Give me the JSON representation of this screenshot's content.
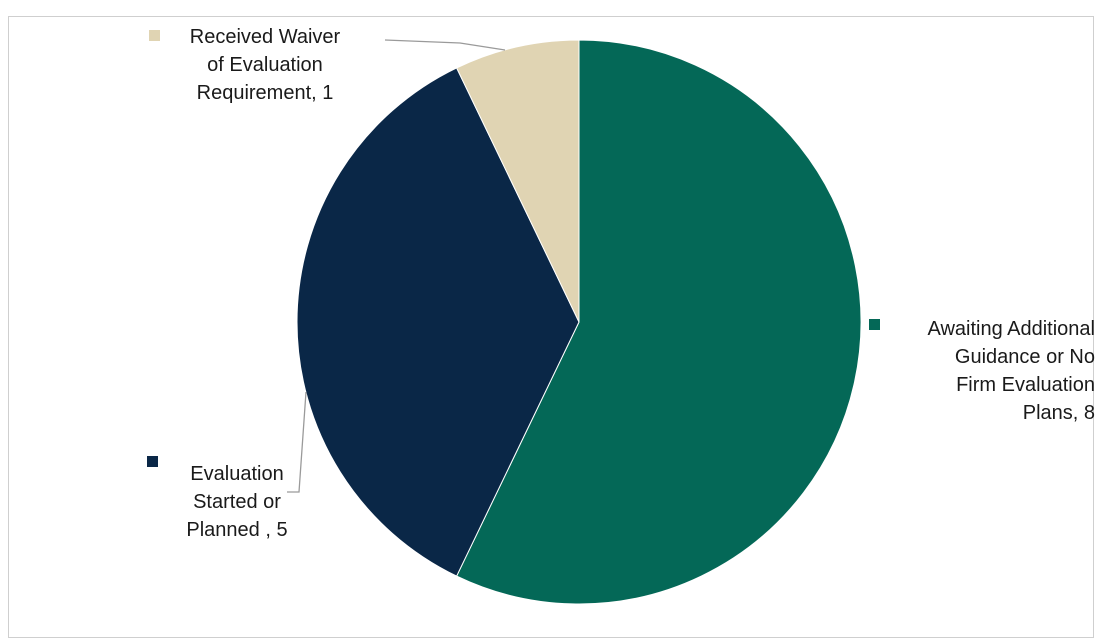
{
  "chart_data": {
    "type": "pie",
    "title": "",
    "slices": [
      {
        "label": "Awaiting Additional Guidance or No Firm Evaluation Plans",
        "value": 8,
        "color": "#046857",
        "label_lines": [
          "Awaiting Additional",
          "Guidance or No",
          "Firm Evaluation",
          "Plans, 8"
        ]
      },
      {
        "label": "Evaluation Started or Planned",
        "value": 5,
        "color": "#0a2747",
        "label_lines": [
          "Evaluation",
          "Started or",
          "Planned , 5"
        ]
      },
      {
        "label": "Received Waiver of Evaluation Requirement",
        "value": 1,
        "color": "#e0d4b3",
        "label_lines": [
          "Received Waiver",
          "of Evaluation",
          "Requirement, 1"
        ]
      }
    ]
  }
}
